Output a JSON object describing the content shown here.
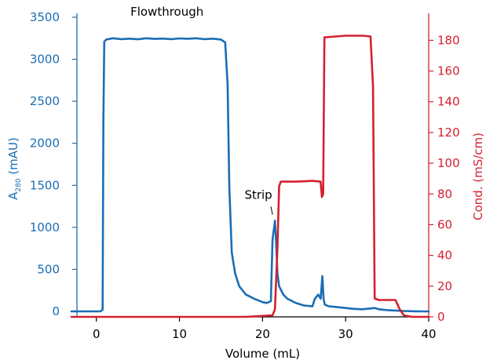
{
  "chart_data": {
    "type": "line",
    "xlabel": "Volume (mL)",
    "ylabel_left": {
      "prefix": "A",
      "subscript": "280",
      "suffix": " (mAU)"
    },
    "ylabel_right": "Cond. (mS/cm)",
    "xlim": [
      -3,
      40
    ],
    "ylim_left": [
      0,
      3500
    ],
    "ylim_right": [
      0,
      195
    ],
    "x_ticks": [
      0,
      10,
      20,
      30,
      40
    ],
    "y_ticks_left": [
      0,
      500,
      1000,
      1500,
      2000,
      2500,
      3000,
      3500
    ],
    "y_ticks_right": [
      0,
      20,
      40,
      60,
      80,
      100,
      120,
      140,
      160,
      180
    ],
    "grid": false,
    "colors": {
      "left": "#1a6eb5",
      "right": "#d4202f",
      "axis": "#000000"
    },
    "annotations": [
      {
        "text": "Flowthrough",
        "x": 8.5,
        "y": 3520,
        "axis": "left"
      },
      {
        "text": "Strip",
        "x": 19.5,
        "y": 1340,
        "axis": "left",
        "pointer_to": [
          21.2,
          1150
        ]
      }
    ],
    "series": [
      {
        "axis": "left",
        "color": "#1a6eb5",
        "x": [
          -3,
          0.5,
          0.75,
          0.85,
          0.95,
          1.2,
          2,
          3,
          4,
          5,
          6,
          7,
          8,
          9,
          10,
          11,
          12,
          13,
          14,
          15,
          15.5,
          15.8,
          16.0,
          16.3,
          16.7,
          17.2,
          18,
          19,
          20,
          20.5,
          21,
          21.2,
          21.5,
          21.6,
          21.8,
          22.0,
          22.5,
          23,
          24,
          25,
          26,
          26.3,
          26.7,
          27.0,
          27.2,
          27.35,
          27.5,
          28,
          29,
          30,
          31,
          32,
          33,
          33.5,
          34,
          35,
          36,
          37,
          38,
          39,
          40
        ],
        "y": [
          0,
          0,
          20,
          2300,
          3210,
          3235,
          3250,
          3240,
          3245,
          3238,
          3250,
          3242,
          3246,
          3240,
          3248,
          3244,
          3250,
          3240,
          3245,
          3235,
          3200,
          2700,
          1500,
          700,
          450,
          300,
          200,
          150,
          110,
          100,
          120,
          850,
          1080,
          900,
          450,
          300,
          200,
          150,
          100,
          70,
          60,
          150,
          200,
          150,
          420,
          150,
          80,
          60,
          50,
          40,
          30,
          25,
          35,
          40,
          25,
          15,
          10,
          5,
          2,
          0,
          0
        ]
      },
      {
        "axis": "right",
        "color": "#d4202f",
        "x": [
          -3,
          18,
          21.2,
          21.5,
          21.8,
          22.0,
          22.2,
          24,
          26,
          27.0,
          27.15,
          27.3,
          27.45,
          27.6,
          30,
          32,
          33.0,
          33.3,
          33.5,
          34,
          35,
          36,
          36.5,
          37,
          38,
          40
        ],
        "y": [
          0,
          0,
          1,
          5,
          45,
          85,
          88,
          88,
          88.5,
          88,
          78,
          80,
          182,
          182,
          183,
          183,
          182.5,
          150,
          12,
          11,
          11,
          11,
          5,
          1,
          0,
          0
        ]
      }
    ]
  }
}
